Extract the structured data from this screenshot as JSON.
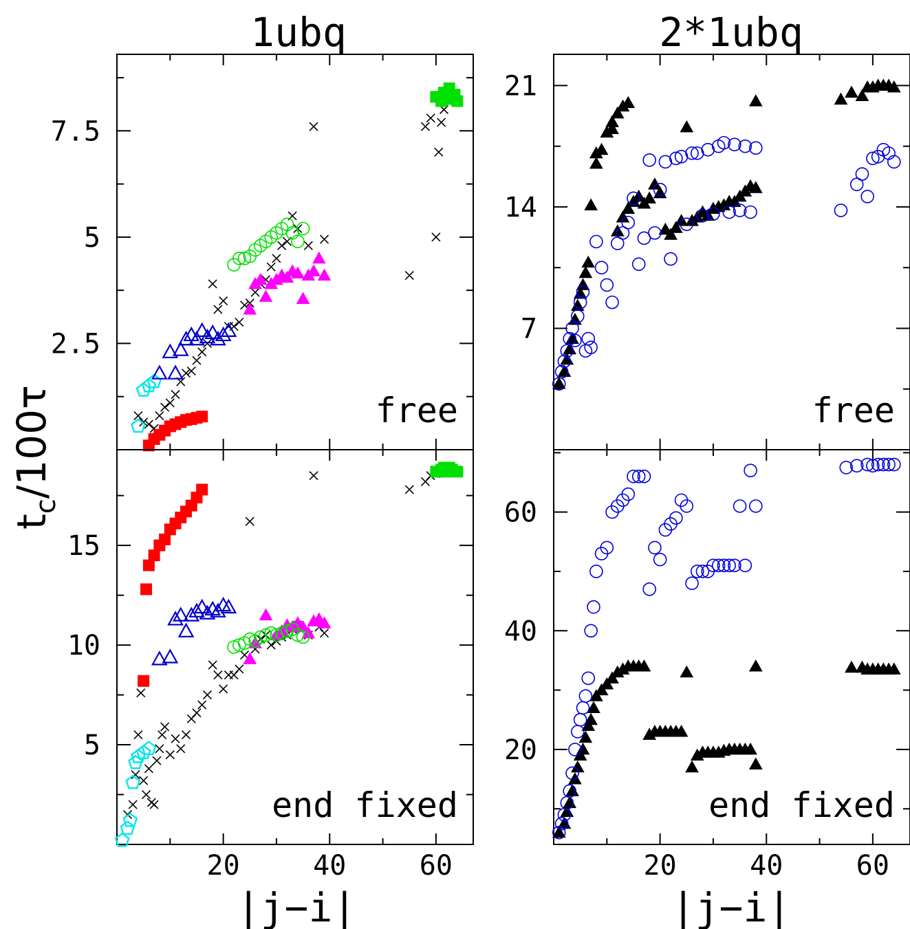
{
  "titles": {
    "left": "1ubq",
    "right": "2*1ubq"
  },
  "axes": {
    "xlabel": "|j−i|",
    "ylabel": {
      "main": "t",
      "sub": "c",
      "rest": "/100τ"
    }
  },
  "colors": {
    "cross": "#000000",
    "red": "#ff0000",
    "cyan": "#00e5ee",
    "blue": "#0000cc",
    "magenta": "#ff00ff",
    "green": "#00e000",
    "black": "#000000",
    "openBlue": "#0000dd"
  },
  "chart_data": [
    {
      "type": "scatter",
      "panel": "1ubq free",
      "label": "free",
      "xlim": [
        0,
        67
      ],
      "ylim": [
        0,
        9.3
      ],
      "xticks": [
        20,
        40,
        60
      ],
      "xticklabels": [
        "20",
        "40",
        "60"
      ],
      "xtick_labels_visible": false,
      "yticks": [
        2.5,
        5,
        7.5
      ],
      "yticklabels": [
        "2.5",
        "5",
        "7.5"
      ],
      "series": [
        {
          "marker": "cross",
          "color": "cross",
          "x": [
            4,
            5,
            6,
            7,
            8,
            9,
            10,
            11,
            12,
            13,
            14,
            15,
            16,
            17,
            18,
            19,
            20,
            21,
            22,
            23,
            24,
            25,
            26,
            27,
            28,
            29,
            30,
            31,
            32,
            33,
            34,
            36,
            37,
            39,
            55,
            58,
            59,
            60,
            60.5,
            61,
            61.5,
            62
          ],
          "y": [
            0.8,
            0.65,
            0.6,
            0.5,
            0.8,
            1.0,
            1.1,
            1.3,
            1.6,
            1.8,
            1.85,
            2.1,
            2.3,
            2.5,
            3.9,
            3.3,
            3.5,
            2.9,
            2.9,
            3.0,
            3.4,
            3.45,
            3.7,
            3.9,
            4.0,
            4.3,
            4.5,
            4.8,
            4.9,
            5.5,
            5.2,
            4.8,
            7.6,
            4.95,
            4.1,
            7.6,
            7.8,
            5.0,
            7.0,
            7.7,
            8.0,
            8.4
          ]
        },
        {
          "marker": "square",
          "color": "red",
          "x": [
            6,
            7,
            8,
            9,
            10,
            11,
            12,
            13,
            14,
            15,
            16
          ],
          "y": [
            0.1,
            0.25,
            0.35,
            0.45,
            0.55,
            0.6,
            0.65,
            0.7,
            0.72,
            0.75,
            0.78
          ]
        },
        {
          "marker": "pentagon",
          "color": "cyan",
          "x": [
            4,
            5,
            6,
            7
          ],
          "y": [
            0.55,
            1.4,
            1.5,
            1.6
          ]
        },
        {
          "marker": "triangle",
          "color": "blue",
          "x": [
            8,
            10,
            11,
            12,
            13,
            14,
            15,
            16,
            17,
            18,
            19,
            20,
            21
          ],
          "y": [
            1.8,
            2.3,
            1.8,
            2.35,
            2.6,
            2.7,
            2.6,
            2.8,
            2.65,
            2.75,
            2.6,
            2.7,
            2.8
          ]
        },
        {
          "marker": "filled-triangle",
          "color": "magenta",
          "x": [
            25,
            26,
            27,
            28,
            29,
            30,
            31,
            32,
            33,
            34,
            35,
            36,
            37,
            38,
            39
          ],
          "y": [
            3.3,
            3.9,
            4.0,
            3.6,
            3.9,
            4.0,
            4.1,
            4.05,
            4.2,
            4.15,
            3.55,
            4.1,
            4.2,
            4.5,
            4.1
          ]
        },
        {
          "marker": "circle",
          "color": "green",
          "x": [
            22,
            23,
            24,
            25,
            26,
            27,
            28,
            29,
            30,
            31,
            32,
            33,
            34,
            35
          ],
          "y": [
            4.35,
            4.5,
            4.5,
            4.55,
            4.7,
            4.8,
            4.9,
            5.0,
            5.1,
            5.2,
            5.3,
            5.1,
            4.9,
            5.2
          ]
        },
        {
          "marker": "square",
          "color": "green",
          "x": [
            60,
            61,
            61.5,
            62,
            62.5,
            63,
            63.5,
            64
          ],
          "y": [
            8.3,
            8.2,
            8.4,
            8.3,
            8.5,
            8.25,
            8.35,
            8.2
          ]
        }
      ]
    },
    {
      "type": "scatter",
      "panel": "2*1ubq free",
      "label": "free",
      "xlim": [
        0,
        67
      ],
      "ylim": [
        0,
        22.8
      ],
      "xticks": [
        20,
        40,
        60
      ],
      "xticklabels": [
        "20",
        "40",
        "60"
      ],
      "xtick_labels_visible": false,
      "yticks": [
        7,
        14,
        21
      ],
      "yticklabels": [
        "7",
        "14",
        "21"
      ],
      "series": [
        {
          "marker": "filled-triangle",
          "color": "black",
          "x": [
            1,
            2,
            2.5,
            3,
            3.5,
            4,
            4.5,
            5,
            5.5,
            6,
            6.5,
            7,
            8,
            8,
            9,
            10,
            11,
            11,
            12,
            12,
            13,
            13,
            14,
            14,
            15,
            16,
            17,
            18,
            19,
            20,
            21,
            22,
            23,
            24,
            25,
            26,
            27,
            28,
            29,
            30,
            31,
            32,
            33,
            34,
            35,
            36,
            37,
            38,
            38,
            54,
            56,
            58,
            59,
            60,
            61,
            62,
            63,
            64
          ],
          "y": [
            3.8,
            4.5,
            5.2,
            5.8,
            6.4,
            7.5,
            8.3,
            9.0,
            9.5,
            10.2,
            10.8,
            14.1,
            16.5,
            17.1,
            17.3,
            18.3,
            18.5,
            18.9,
            12.6,
            19.4,
            13.4,
            19.8,
            13.9,
            20.0,
            14.3,
            14.6,
            14.2,
            14.5,
            15.3,
            14.8,
            12.7,
            12.4,
            12.8,
            13.2,
            18.6,
            13.2,
            13.4,
            13.7,
            13.5,
            13.9,
            14.0,
            14.1,
            14.3,
            14.3,
            14.6,
            14.9,
            15.2,
            15.1,
            20.1,
            20.2,
            20.6,
            20.4,
            20.9,
            20.9,
            21.0,
            21.0,
            21.0,
            20.9
          ]
        },
        {
          "marker": "circle",
          "color": "openBlue",
          "x": [
            1,
            1.5,
            2,
            2.5,
            3,
            3.5,
            4,
            4.5,
            5,
            5.5,
            6,
            6.5,
            7,
            8,
            9,
            10,
            11,
            12,
            13,
            14,
            15,
            16,
            17,
            18,
            19,
            20,
            21,
            22,
            23,
            24,
            25,
            26,
            27,
            28,
            29,
            30,
            31,
            32,
            33,
            34,
            35,
            36,
            37,
            38,
            54,
            57,
            58,
            59,
            60,
            61,
            62,
            63,
            64
          ],
          "y": [
            3.8,
            4.5,
            5.1,
            5.7,
            6.4,
            7.0,
            6.3,
            7.7,
            8.5,
            9.1,
            5.7,
            6.4,
            5.9,
            12.0,
            10.5,
            9.5,
            8.5,
            11.9,
            12.5,
            13.1,
            14.5,
            10.7,
            12.2,
            16.7,
            12.5,
            15.0,
            16.6,
            11.0,
            16.8,
            16.9,
            13.0,
            17.1,
            17.1,
            13.5,
            17.3,
            13.6,
            17.5,
            17.7,
            13.7,
            17.6,
            13.8,
            17.5,
            13.7,
            17.4,
            13.8,
            15.3,
            15.9,
            14.6,
            16.8,
            16.9,
            17.3,
            17.1,
            16.6
          ]
        }
      ]
    },
    {
      "type": "scatter",
      "panel": "1ubq end fixed",
      "label": "end fixed",
      "xlim": [
        0,
        67
      ],
      "ylim": [
        0,
        19.8
      ],
      "xticks": [
        20,
        40,
        60
      ],
      "xticklabels": [
        "20",
        "40",
        "60"
      ],
      "xtick_labels_visible": true,
      "yticks": [
        5,
        10,
        15
      ],
      "yticklabels": [
        "5",
        "10",
        "15"
      ],
      "series": [
        {
          "marker": "cross",
          "color": "cross",
          "x": [
            2,
            3,
            3.5,
            4,
            4.5,
            5,
            5.5,
            6,
            6.5,
            7,
            7.5,
            8,
            8.5,
            9,
            10,
            11,
            12,
            13,
            14,
            15,
            16,
            17,
            18,
            19,
            20,
            21,
            22,
            23,
            24,
            25,
            26,
            27,
            28,
            29,
            30,
            31,
            32,
            33,
            34,
            36,
            37,
            38,
            39,
            55,
            58,
            59,
            60,
            61,
            62,
            63
          ],
          "y": [
            1.5,
            2.0,
            3.5,
            5.5,
            7.6,
            3.2,
            2.5,
            3.8,
            2.1,
            2.0,
            4.2,
            4.8,
            5.5,
            5.9,
            4.5,
            5.3,
            4.8,
            5.5,
            6.3,
            6.6,
            7.0,
            7.5,
            9.0,
            8.5,
            7.8,
            8.5,
            8.5,
            8.8,
            9.5,
            16.2,
            9.8,
            10.3,
            10.5,
            10.0,
            10.2,
            10.4,
            10.5,
            10.8,
            11.0,
            10.5,
            18.5,
            10.9,
            10.6,
            17.8,
            18.2,
            18.5,
            18.6,
            18.8,
            18.9,
            18.7
          ]
        },
        {
          "marker": "square",
          "color": "red",
          "x": [
            5,
            5.5,
            6,
            7,
            8,
            9,
            10,
            11,
            12,
            13,
            14,
            15,
            16
          ],
          "y": [
            8.2,
            12.8,
            14.0,
            14.5,
            15.0,
            15.3,
            15.8,
            16.1,
            16.4,
            16.7,
            17.0,
            17.4,
            17.8
          ]
        },
        {
          "marker": "pentagon",
          "color": "cyan",
          "x": [
            1,
            2,
            2.5,
            3,
            3.5,
            4,
            5,
            6
          ],
          "y": [
            0.2,
            0.8,
            1.2,
            3.1,
            4.1,
            4.4,
            4.6,
            4.8
          ]
        },
        {
          "marker": "triangle",
          "color": "blue",
          "x": [
            8,
            10,
            11,
            12,
            13,
            14,
            15,
            16,
            17,
            18,
            19,
            20,
            21
          ],
          "y": [
            9.3,
            9.4,
            11.3,
            11.5,
            10.7,
            11.5,
            11.7,
            11.9,
            11.6,
            11.8,
            11.7,
            12.0,
            11.9
          ]
        },
        {
          "marker": "filled-triangle",
          "color": "magenta",
          "x": [
            25,
            26,
            28,
            30,
            31,
            32,
            33,
            34,
            35,
            36,
            37,
            38,
            39
          ],
          "y": [
            9.3,
            10.1,
            11.5,
            10.5,
            10.7,
            11.0,
            10.9,
            11.1,
            10.9,
            10.6,
            11.2,
            11.3,
            11.1
          ]
        },
        {
          "marker": "circle",
          "color": "green",
          "x": [
            22,
            23,
            24,
            25,
            26,
            27,
            28,
            29,
            30,
            31,
            32,
            33,
            34,
            35
          ],
          "y": [
            9.9,
            10.0,
            10.1,
            10.3,
            10.2,
            10.4,
            10.5,
            10.6,
            10.5,
            10.6,
            10.7,
            10.8,
            10.5,
            10.4
          ]
        },
        {
          "marker": "square",
          "color": "green",
          "x": [
            60,
            61,
            61.5,
            62,
            62.5,
            63,
            64
          ],
          "y": [
            18.7,
            18.8,
            18.9,
            18.7,
            18.9,
            18.8,
            18.7
          ]
        }
      ]
    },
    {
      "type": "scatter",
      "panel": "2*1ubq end fixed",
      "label": "end fixed",
      "xlim": [
        0,
        67
      ],
      "ylim": [
        4,
        70.5
      ],
      "xticks": [
        20,
        40,
        60
      ],
      "xticklabels": [
        "20",
        "40",
        "60"
      ],
      "xtick_labels_visible": true,
      "yticks": [
        20,
        40,
        60
      ],
      "yticklabels": [
        "20",
        "40",
        "60"
      ],
      "series": [
        {
          "marker": "filled-triangle",
          "color": "black",
          "x": [
            1,
            2,
            2.5,
            3,
            3.5,
            4,
            4.5,
            5,
            5.5,
            6,
            6.5,
            7,
            7.5,
            8,
            9,
            10,
            11,
            12,
            13,
            14,
            15,
            16,
            17,
            18,
            19,
            20,
            21,
            22,
            23,
            24,
            25,
            26,
            27,
            28,
            29,
            30,
            31,
            32,
            33,
            34,
            35,
            36,
            37,
            38,
            38,
            56,
            58,
            59,
            60,
            61,
            62,
            63,
            64
          ],
          "y": [
            6,
            7.5,
            9.5,
            11,
            13,
            15,
            17,
            19,
            20,
            22,
            24,
            25,
            27,
            29,
            30,
            31,
            32,
            33,
            33.5,
            34,
            34,
            34,
            34,
            22.5,
            23,
            23,
            23,
            23,
            23,
            23,
            33,
            17,
            19,
            19.5,
            19.5,
            19.5,
            19.5,
            19.8,
            20,
            20,
            20,
            20,
            20,
            34,
            17.5,
            33.8,
            33.8,
            33.5,
            33.5,
            33.5,
            33.5,
            33.5,
            33.5
          ]
        },
        {
          "marker": "circle",
          "color": "openBlue",
          "x": [
            1,
            1.5,
            2,
            2.5,
            3,
            3.5,
            4,
            4.5,
            5,
            5.5,
            6,
            6.5,
            7,
            7.5,
            8,
            9,
            10,
            11,
            12,
            13,
            14,
            15,
            16,
            17,
            18,
            19,
            20,
            21,
            22,
            23,
            24,
            25,
            26,
            27,
            28,
            29,
            30,
            31,
            32,
            33,
            34,
            35,
            36,
            37,
            38,
            55,
            57,
            59,
            60,
            61,
            62,
            63,
            64
          ],
          "y": [
            6,
            7.5,
            9,
            11,
            13,
            16,
            20,
            23,
            25,
            27,
            29,
            32,
            40,
            44,
            50,
            53,
            54,
            60,
            61,
            62,
            63,
            66,
            66,
            66,
            47,
            54,
            52,
            57,
            58,
            59,
            62,
            61,
            48,
            50,
            50,
            50,
            51,
            51,
            51,
            51,
            51,
            61,
            51,
            67,
            61,
            67.5,
            67.8,
            68,
            67.8,
            68,
            68,
            68,
            68
          ]
        }
      ]
    }
  ]
}
